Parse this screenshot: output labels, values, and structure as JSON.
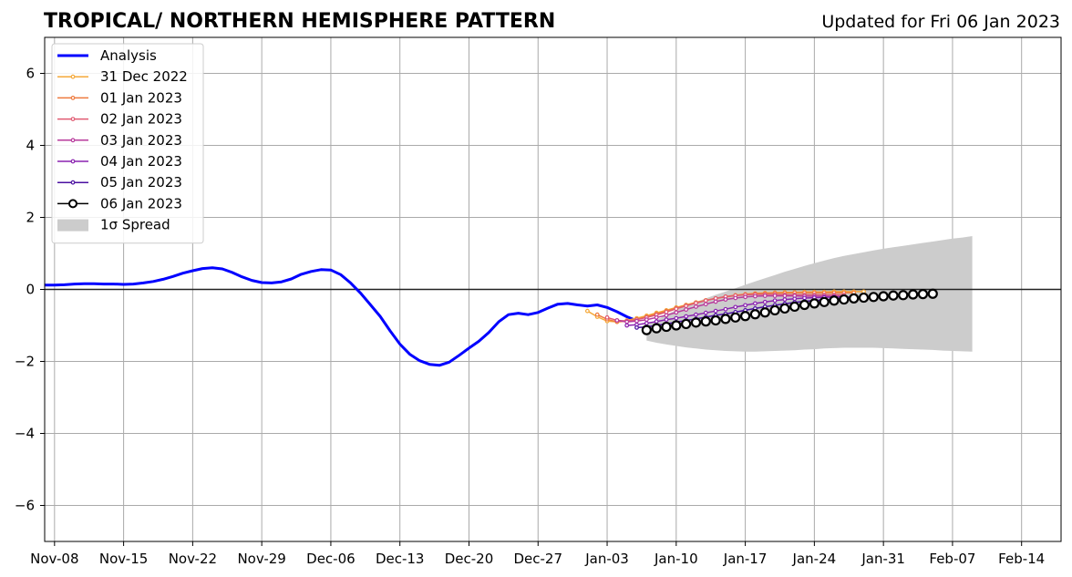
{
  "chart_data": {
    "type": "line",
    "title": "TROPICAL/ NORTHERN HEMISPHERE PATTERN",
    "subtitle": "Updated for Fri 06 Jan 2023",
    "xlabel": "",
    "ylabel": "",
    "x_range": [
      "2022-11-07",
      "2023-02-18"
    ],
    "ylim": [
      -7,
      7
    ],
    "grid": true,
    "legend_position": "top-left",
    "x_ticks": [
      "Nov-08",
      "Nov-15",
      "Nov-22",
      "Nov-29",
      "Dec-06",
      "Dec-13",
      "Dec-20",
      "Dec-27",
      "Jan-03",
      "Jan-10",
      "Jan-17",
      "Jan-24",
      "Jan-31",
      "Feb-07",
      "Feb-14"
    ],
    "y_ticks": [
      "6",
      "4",
      "2",
      "0",
      "−2",
      "−4",
      "−6"
    ],
    "analysis": {
      "name": "Analysis",
      "color": "#0000ff",
      "start_date": "2022-11-07",
      "values": [
        0.12,
        0.12,
        0.13,
        0.15,
        0.16,
        0.16,
        0.15,
        0.15,
        0.14,
        0.15,
        0.18,
        0.22,
        0.28,
        0.36,
        0.45,
        0.52,
        0.58,
        0.6,
        0.57,
        0.47,
        0.35,
        0.25,
        0.19,
        0.18,
        0.21,
        0.29,
        0.42,
        0.5,
        0.55,
        0.54,
        0.41,
        0.18,
        -0.1,
        -0.42,
        -0.75,
        -1.15,
        -1.52,
        -1.8,
        -1.98,
        -2.08,
        -2.11,
        -2.02,
        -1.83,
        -1.63,
        -1.44,
        -1.2,
        -0.9,
        -0.7,
        -0.66,
        -0.7,
        -0.64,
        -0.52,
        -0.41,
        -0.39,
        -0.43,
        -0.46,
        -0.43,
        -0.5,
        -0.62,
        -0.76,
        -0.87
      ]
    },
    "forecasts": [
      {
        "name": "31 Dec 2022",
        "color": "#f5a93a",
        "start_date": "2023-01-01",
        "values": [
          -0.6,
          -0.76,
          -0.88,
          -0.9,
          -0.86,
          -0.8,
          -0.73,
          -0.65,
          -0.58,
          -0.5,
          -0.43,
          -0.36,
          -0.3,
          -0.25,
          -0.2,
          -0.16,
          -0.13,
          -0.11,
          -0.1,
          -0.09,
          -0.08,
          -0.08,
          -0.07,
          -0.07,
          -0.07,
          -0.06,
          -0.06,
          -0.06,
          -0.06
        ]
      },
      {
        "name": "01 Jan 2023",
        "color": "#ee7a3e",
        "start_date": "2023-01-02",
        "values": [
          -0.7,
          -0.83,
          -0.9,
          -0.88,
          -0.83,
          -0.76,
          -0.68,
          -0.6,
          -0.52,
          -0.44,
          -0.37,
          -0.31,
          -0.25,
          -0.21,
          -0.17,
          -0.14,
          -0.12,
          -0.11,
          -0.1,
          -0.1,
          -0.09,
          -0.09,
          -0.09,
          -0.09,
          -0.09,
          -0.09,
          -0.09
        ]
      },
      {
        "name": "02 Jan 2023",
        "color": "#e05a72",
        "start_date": "2023-01-03",
        "values": [
          -0.78,
          -0.86,
          -0.88,
          -0.84,
          -0.78,
          -0.71,
          -0.63,
          -0.54,
          -0.46,
          -0.38,
          -0.31,
          -0.25,
          -0.2,
          -0.17,
          -0.15,
          -0.14,
          -0.14,
          -0.14,
          -0.15,
          -0.15,
          -0.15,
          -0.15,
          -0.15,
          -0.15,
          -0.15
        ]
      },
      {
        "name": "03 Jan 2023",
        "color": "#b83a9c",
        "start_date": "2023-01-04",
        "values": [
          -0.86,
          -0.9,
          -0.88,
          -0.84,
          -0.78,
          -0.72,
          -0.64,
          -0.56,
          -0.48,
          -0.41,
          -0.34,
          -0.28,
          -0.24,
          -0.21,
          -0.19,
          -0.18,
          -0.18,
          -0.18,
          -0.18,
          -0.19,
          -0.19,
          -0.19,
          -0.19,
          -0.19
        ]
      },
      {
        "name": "04 Jan 2023",
        "color": "#8a22b0",
        "start_date": "2023-01-05",
        "values": [
          -1.0,
          -0.98,
          -0.94,
          -0.89,
          -0.84,
          -0.8,
          -0.75,
          -0.7,
          -0.65,
          -0.6,
          -0.55,
          -0.49,
          -0.44,
          -0.39,
          -0.35,
          -0.31,
          -0.28,
          -0.26,
          -0.24,
          -0.23,
          -0.22,
          -0.21,
          -0.21,
          -0.21
        ]
      },
      {
        "name": "05 Jan 2023",
        "color": "#4a10a0",
        "start_date": "2023-01-06",
        "values": [
          -1.06,
          -1.04,
          -1.0,
          -0.96,
          -0.91,
          -0.86,
          -0.82,
          -0.77,
          -0.72,
          -0.68,
          -0.63,
          -0.58,
          -0.53,
          -0.48,
          -0.44,
          -0.4,
          -0.36,
          -0.33,
          -0.31,
          -0.29,
          -0.27,
          -0.26,
          -0.25,
          -0.25
        ]
      },
      {
        "name": "06 Jan 2023",
        "color": "#000000",
        "start_date": "2023-01-07",
        "values": [
          -1.13,
          -1.08,
          -1.04,
          -1.0,
          -0.96,
          -0.92,
          -0.89,
          -0.86,
          -0.82,
          -0.78,
          -0.74,
          -0.69,
          -0.64,
          -0.58,
          -0.53,
          -0.48,
          -0.43,
          -0.39,
          -0.35,
          -0.31,
          -0.28,
          -0.25,
          -0.23,
          -0.21,
          -0.19,
          -0.17,
          -0.16,
          -0.14,
          -0.13,
          -0.12
        ]
      }
    ],
    "spread": {
      "name": "1σ Spread",
      "color": "#cccccc",
      "start_date": "2023-01-07",
      "upper": [
        -1.0,
        -0.85,
        -0.7,
        -0.57,
        -0.45,
        -0.35,
        -0.25,
        -0.15,
        -0.06,
        0.03,
        0.13,
        0.22,
        0.31,
        0.4,
        0.49,
        0.57,
        0.65,
        0.73,
        0.8,
        0.87,
        0.93,
        0.98,
        1.03,
        1.08,
        1.13,
        1.17,
        1.21,
        1.25,
        1.29,
        1.33,
        1.37,
        1.41,
        1.44,
        1.48
      ],
      "lower": [
        -1.42,
        -1.48,
        -1.53,
        -1.57,
        -1.61,
        -1.64,
        -1.67,
        -1.69,
        -1.71,
        -1.72,
        -1.73,
        -1.73,
        -1.72,
        -1.71,
        -1.7,
        -1.69,
        -1.67,
        -1.66,
        -1.64,
        -1.63,
        -1.62,
        -1.62,
        -1.62,
        -1.62,
        -1.63,
        -1.64,
        -1.65,
        -1.66,
        -1.67,
        -1.68,
        -1.7,
        -1.71,
        -1.72,
        -1.73
      ]
    }
  }
}
